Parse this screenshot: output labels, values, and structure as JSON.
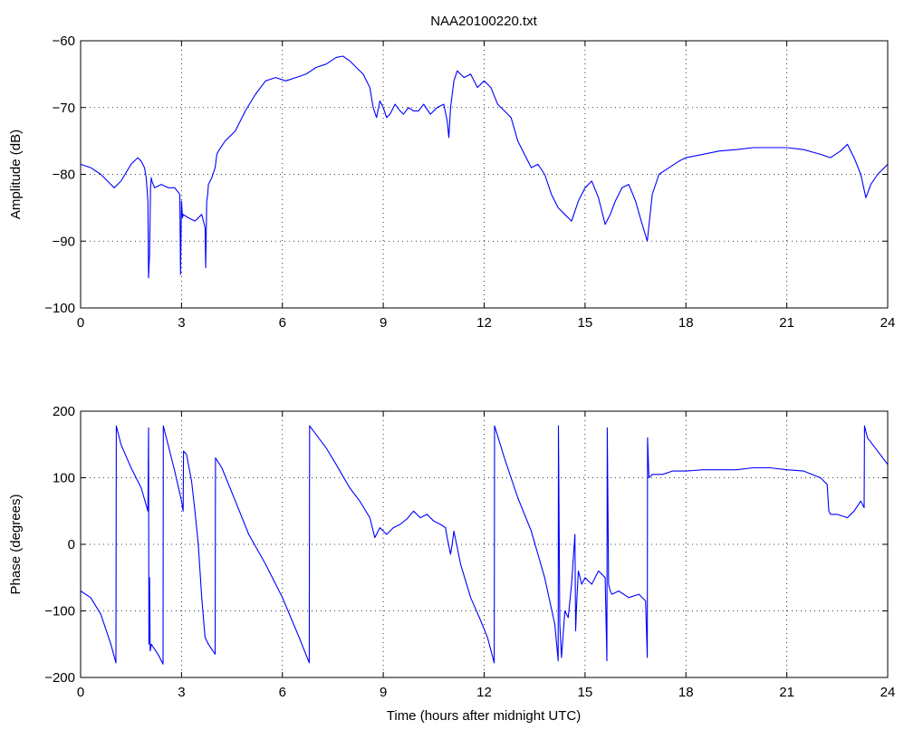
{
  "figure": {
    "title": "NAA20100220.txt",
    "xlabel": "Time (hours after midnight UTC)"
  },
  "chart_data": [
    {
      "type": "line",
      "name": "amplitude",
      "title": "NAA20100220.txt",
      "xlabel": "",
      "ylabel": "Amplitude (dB)",
      "xlim": [
        0,
        24
      ],
      "ylim": [
        -100,
        -60
      ],
      "xticks": [
        0,
        3,
        6,
        9,
        12,
        15,
        18,
        21,
        24
      ],
      "yticks": [
        -100,
        -90,
        -80,
        -70,
        -60
      ],
      "grid": true,
      "color": "#0000ff",
      "series": [
        {
          "x": [
            0,
            0.3,
            0.6,
            0.9,
            1.0,
            1.2,
            1.5,
            1.7,
            1.8,
            1.9,
            1.95,
            2.0,
            2.02,
            2.05,
            2.08,
            2.1,
            2.12,
            2.2,
            2.4,
            2.6,
            2.8,
            2.95,
            2.97,
            3.0,
            3.03,
            3.05,
            3.2,
            3.4,
            3.6,
            3.7,
            3.72,
            3.75,
            3.78,
            3.8,
            3.9,
            4.0,
            4.05,
            4.1,
            4.3,
            4.6,
            4.9,
            5.2,
            5.5,
            5.8,
            6.1,
            6.4,
            6.7,
            7.0,
            7.3,
            7.6,
            7.8,
            8.0,
            8.2,
            8.4,
            8.6,
            8.7,
            8.8,
            8.9,
            9.0,
            9.1,
            9.2,
            9.35,
            9.5,
            9.6,
            9.75,
            9.9,
            10.05,
            10.2,
            10.4,
            10.6,
            10.8,
            10.9,
            10.95,
            11.0,
            11.1,
            11.2,
            11.4,
            11.6,
            11.8,
            12.0,
            12.2,
            12.4,
            12.6,
            12.8,
            13.0,
            13.2,
            13.4,
            13.6,
            13.8,
            14.0,
            14.2,
            14.4,
            14.6,
            14.8,
            15.0,
            15.2,
            15.4,
            15.6,
            15.75,
            15.9,
            16.1,
            16.3,
            16.5,
            16.7,
            16.85,
            17.0,
            17.2,
            17.5,
            17.8,
            18.0,
            18.5,
            19.0,
            19.5,
            20.0,
            20.5,
            21.0,
            21.5,
            22.0,
            22.3,
            22.6,
            22.8,
            23.0,
            23.2,
            23.35,
            23.5,
            23.7,
            24.0
          ],
          "y": [
            -78.5,
            -79,
            -80,
            -81.5,
            -82,
            -81,
            -78.5,
            -77.5,
            -78,
            -79,
            -80.5,
            -84,
            -95.5,
            -92,
            -82,
            -80.5,
            -81,
            -82,
            -81.5,
            -82,
            -82,
            -83,
            -95,
            -84,
            -86.5,
            -86,
            -86.5,
            -87,
            -86,
            -88,
            -94,
            -84,
            -83,
            -81.5,
            -80.5,
            -79,
            -77,
            -76.5,
            -75,
            -73.5,
            -70.5,
            -68,
            -66,
            -65.5,
            -66,
            -65.5,
            -65,
            -64,
            -63.5,
            -62.5,
            -62.3,
            -63,
            -64,
            -65,
            -67,
            -70,
            -71.5,
            -69,
            -70,
            -71.5,
            -71,
            -69.5,
            -70.5,
            -71,
            -70,
            -70.5,
            -70.5,
            -69.5,
            -71,
            -70,
            -69.5,
            -72,
            -74.5,
            -70,
            -66,
            -64.5,
            -65.5,
            -65,
            -67,
            -66,
            -67,
            -69.5,
            -70.5,
            -71.5,
            -75,
            -77,
            -79,
            -78.5,
            -80,
            -83,
            -85,
            -86,
            -87,
            -84,
            -82,
            -81,
            -83.5,
            -87.5,
            -86,
            -84,
            -82,
            -81.5,
            -84,
            -87.5,
            -90,
            -83,
            -80,
            -79,
            -78,
            -77.5,
            -77,
            -76.5,
            -76.3,
            -76,
            -76,
            -76,
            -76.3,
            -77,
            -77.5,
            -76.5,
            -75.5,
            -77.5,
            -80,
            -83.5,
            -81.5,
            -80,
            -78.5
          ]
        }
      ]
    },
    {
      "type": "line",
      "name": "phase",
      "title": "",
      "xlabel": "Time (hours after midnight UTC)",
      "ylabel": "Phase (degrees)",
      "xlim": [
        0,
        24
      ],
      "ylim": [
        -200,
        200
      ],
      "xticks": [
        0,
        3,
        6,
        9,
        12,
        15,
        18,
        21,
        24
      ],
      "yticks": [
        -200,
        -100,
        0,
        100,
        200
      ],
      "grid": true,
      "color": "#0000ff",
      "series": [
        {
          "x": [
            0,
            0.3,
            0.6,
            0.9,
            1.05,
            1.06,
            1.2,
            1.5,
            1.8,
            2.0,
            2.02,
            2.03,
            2.05,
            2.07,
            2.1,
            2.3,
            2.45,
            2.46,
            2.6,
            2.8,
            3.0,
            3.05,
            3.06,
            3.15,
            3.3,
            3.4,
            3.5,
            3.6,
            3.7,
            3.8,
            4.0,
            4.01,
            4.2,
            4.6,
            5.0,
            5.5,
            6.0,
            6.5,
            6.8,
            6.81,
            7.0,
            7.3,
            7.6,
            8.0,
            8.3,
            8.6,
            8.75,
            8.9,
            9.1,
            9.3,
            9.5,
            9.7,
            9.9,
            10.1,
            10.3,
            10.5,
            10.7,
            10.85,
            10.9,
            11.0,
            11.05,
            11.1,
            11.3,
            11.6,
            11.9,
            12.1,
            12.3,
            12.31,
            12.6,
            13.0,
            13.4,
            13.8,
            14.1,
            14.2,
            14.21,
            14.25,
            14.3,
            14.4,
            14.5,
            14.6,
            14.7,
            14.72,
            14.75,
            14.8,
            14.9,
            15.0,
            15.2,
            15.4,
            15.6,
            15.65,
            15.66,
            15.7,
            15.75,
            15.8,
            16.0,
            16.3,
            16.6,
            16.8,
            16.85,
            16.86,
            16.9,
            17.0,
            17.3,
            17.6,
            18.0,
            18.5,
            19.0,
            19.5,
            20.0,
            20.5,
            21.0,
            21.5,
            22.0,
            22.2,
            22.25,
            22.3,
            22.5,
            22.8,
            23.0,
            23.2,
            23.3,
            23.31,
            23.4,
            23.7,
            24.0
          ],
          "y": [
            -70,
            -80,
            -105,
            -150,
            -178,
            178,
            150,
            115,
            85,
            50,
            175,
            -150,
            -50,
            -160,
            -150,
            -165,
            -180,
            178,
            150,
            110,
            65,
            50,
            140,
            135,
            95,
            50,
            0,
            -80,
            -140,
            -150,
            -165,
            130,
            115,
            65,
            15,
            -30,
            -80,
            -140,
            -178,
            178,
            165,
            145,
            120,
            85,
            65,
            40,
            10,
            25,
            15,
            25,
            30,
            38,
            50,
            40,
            45,
            35,
            30,
            25,
            10,
            -15,
            0,
            20,
            -30,
            -80,
            -115,
            -140,
            -178,
            178,
            130,
            70,
            20,
            -50,
            -120,
            -175,
            178,
            -120,
            -170,
            -100,
            -110,
            -60,
            15,
            -130,
            -90,
            -40,
            -60,
            -50,
            -60,
            -40,
            -50,
            -175,
            175,
            -60,
            -70,
            -75,
            -70,
            -80,
            -75,
            -85,
            -170,
            160,
            100,
            105,
            105,
            110,
            110,
            112,
            112,
            112,
            115,
            115,
            112,
            110,
            100,
            90,
            50,
            45,
            45,
            40,
            50,
            65,
            55,
            178,
            160,
            140,
            120
          ]
        }
      ]
    }
  ]
}
